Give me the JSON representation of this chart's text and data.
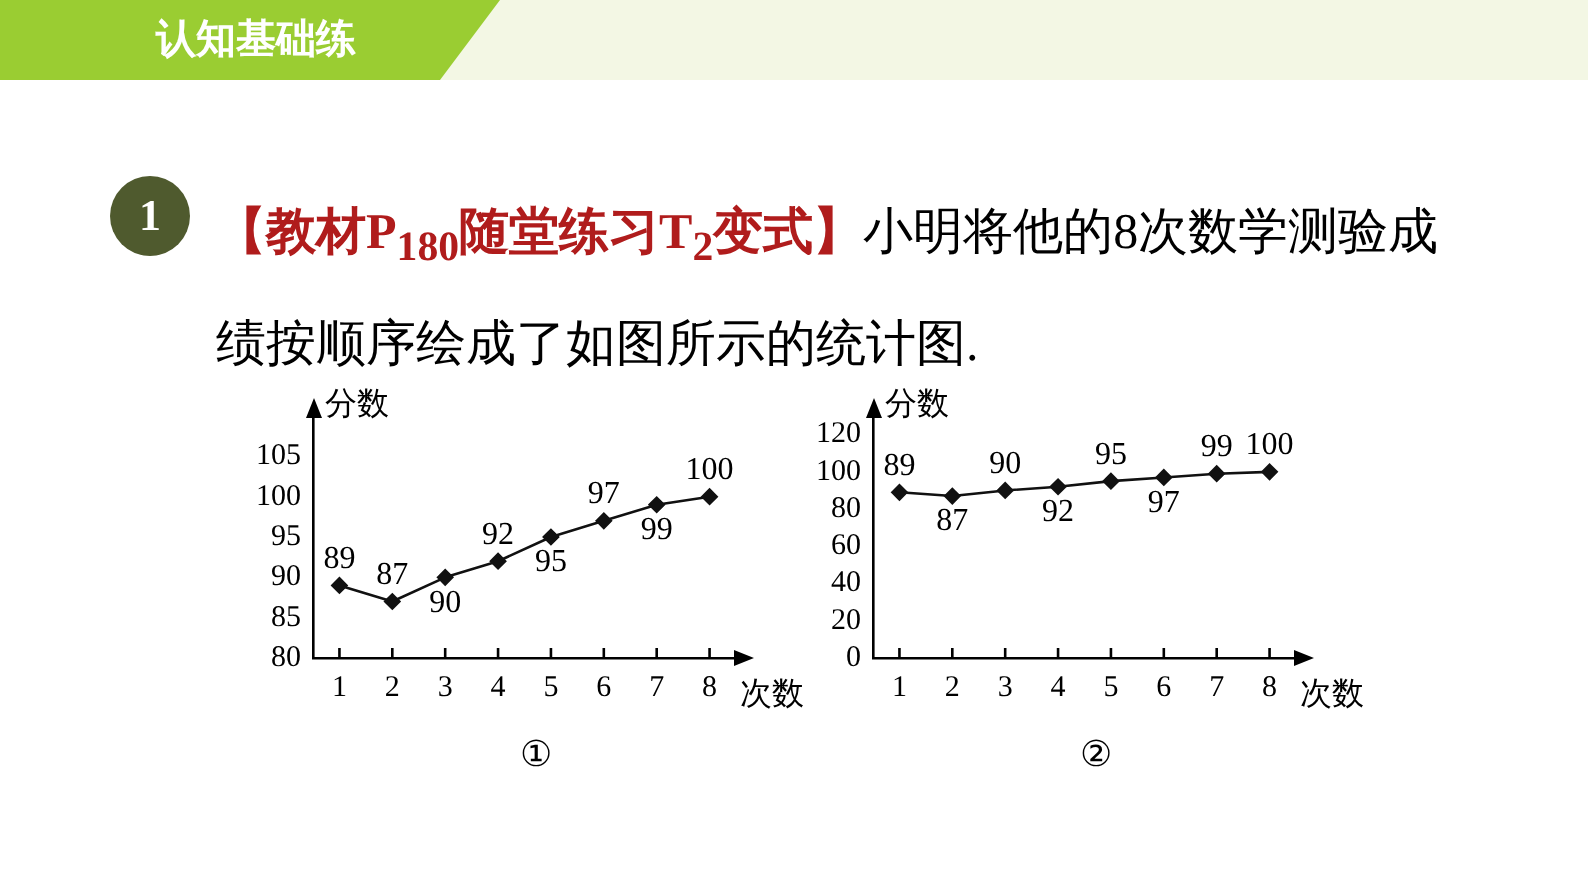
{
  "chart_data": [
    {
      "type": "line",
      "title": "①",
      "xlabel": "次数",
      "ylabel": "分数",
      "annotations": [
        "认知基础练",
        "1",
        "【教材P$_{180}$随堂练习T$_{2}$变式】",
        "小明将他的8次数学测验成绩按顺序绘成了如图所示的统计图."
      ],
      "categories": [
        "1",
        "2",
        "3",
        "4",
        "5",
        "6",
        "7",
        "8"
      ],
      "series": [
        {
          "color": "#111111",
          "values": [
            89,
            87,
            90,
            92,
            95,
            97,
            99,
            100
          ]
        }
      ],
      "ylim": [
        80,
        110
      ],
      "yticks": [
        80,
        85,
        90,
        95,
        100,
        105
      ],
      "grid": false,
      "legend": false,
      "marker": "diamond",
      "line_style": "solid",
      "data_labels": true
    },
    {
      "type": "line",
      "title": "②",
      "xlabel": "次数",
      "ylabel": "分数",
      "categories": [
        "1",
        "2",
        "3",
        "4",
        "5",
        "6",
        "7",
        "8"
      ],
      "series": [
        {
          "color": "#111111",
          "values": [
            89,
            87,
            90,
            92,
            95,
            97,
            99,
            100
          ]
        }
      ],
      "ylim": [
        0,
        130
      ],
      "yticks": [
        0,
        20,
        40,
        60,
        80,
        100,
        120
      ],
      "grid": false,
      "legend": false,
      "marker": "diamond",
      "line_style": "solid",
      "data_labels": true
    }
  ]
}
